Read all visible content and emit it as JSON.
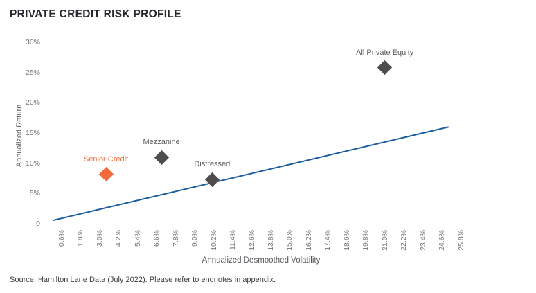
{
  "header": {
    "title": "PRIVATE CREDIT RISK PROFILE"
  },
  "footer": {
    "source": "Source: Hamilton Lane Data (July 2022). Please refer to endnotes in appendix."
  },
  "colors": {
    "title": "#25252B",
    "tick_label": "#757575",
    "axis_title": "#55575B",
    "trend_line": "#1A5E9E",
    "senior_credit": "#F26B3A",
    "gray_marker": "#4D4D4F",
    "background": "#FFFFFF"
  },
  "chart_data": {
    "type": "scatter",
    "title": "PRIVATE CREDIT RISK PROFILE",
    "xlabel": "Annualized Desmoothed Volatility",
    "ylabel": "Annualized Return",
    "xlim": [
      0,
      26.4
    ],
    "ylim": [
      0,
      30
    ],
    "grid": false,
    "legend": "none",
    "x_ticks": [
      {
        "value": 0.6,
        "label": "0.6%"
      },
      {
        "value": 1.8,
        "label": "1.8%"
      },
      {
        "value": 3.0,
        "label": "3.0%"
      },
      {
        "value": 4.2,
        "label": "4.2%"
      },
      {
        "value": 5.4,
        "label": "5.4%"
      },
      {
        "value": 6.6,
        "label": "6.6%"
      },
      {
        "value": 7.8,
        "label": "7.8%"
      },
      {
        "value": 9.0,
        "label": "9.0%"
      },
      {
        "value": 10.2,
        "label": "10.2%"
      },
      {
        "value": 11.4,
        "label": "11.4%"
      },
      {
        "value": 12.6,
        "label": "12.6%"
      },
      {
        "value": 13.8,
        "label": "13.8%"
      },
      {
        "value": 15.0,
        "label": "15.0%"
      },
      {
        "value": 16.2,
        "label": "16.2%"
      },
      {
        "value": 17.4,
        "label": "17.4%"
      },
      {
        "value": 18.6,
        "label": "18.6%"
      },
      {
        "value": 19.8,
        "label": "19.8%"
      },
      {
        "value": 21.0,
        "label": "21.0%"
      },
      {
        "value": 22.2,
        "label": "22.2%"
      },
      {
        "value": 23.4,
        "label": "23.4%"
      },
      {
        "value": 24.6,
        "label": "24.6%"
      },
      {
        "value": 25.8,
        "label": "25.8%"
      }
    ],
    "y_ticks": [
      {
        "value": 0,
        "label": "0"
      },
      {
        "value": 5,
        "label": "5%"
      },
      {
        "value": 10,
        "label": "10%"
      },
      {
        "value": 15,
        "label": "15%"
      },
      {
        "value": 20,
        "label": "20%"
      },
      {
        "value": 25,
        "label": "25%"
      },
      {
        "value": 30,
        "label": "30%"
      }
    ],
    "points": [
      {
        "label": "Senior Credit",
        "x": 3.4,
        "y": 8.3,
        "marker_color": "#F26B3A",
        "label_color": "#F26B3A"
      },
      {
        "label": "Mezzanine",
        "x": 6.9,
        "y": 11.1,
        "marker_color": "#4D4D4F",
        "label_color": "#58595B"
      },
      {
        "label": "Distressed",
        "x": 10.1,
        "y": 7.4,
        "marker_color": "#4D4D4F",
        "label_color": "#58595B"
      },
      {
        "label": "All Private Equity",
        "x": 21.0,
        "y": 25.9,
        "marker_color": "#4D4D4F",
        "label_color": "#58595B"
      }
    ],
    "trend_line": {
      "color": "#1A5E9E",
      "width": 2,
      "from": {
        "x": 0.1,
        "y": 0.7
      },
      "to": {
        "x": 25.0,
        "y": 16.1
      }
    }
  }
}
